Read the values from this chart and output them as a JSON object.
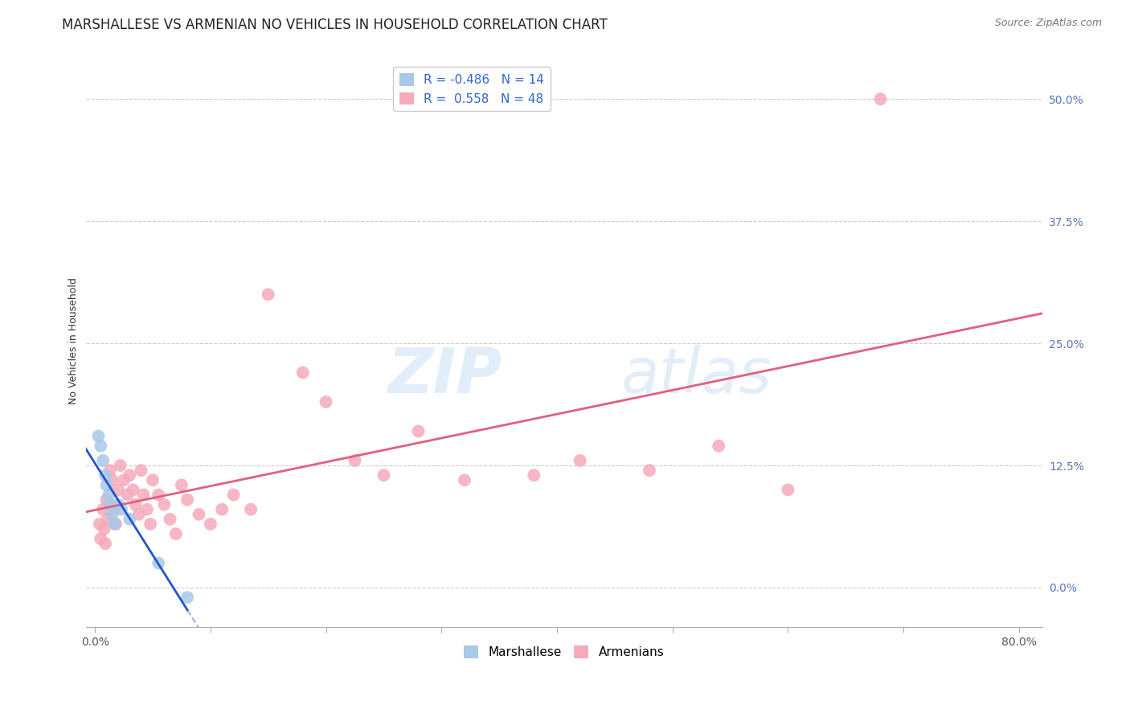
{
  "title": "MARSHALLESE VS ARMENIAN NO VEHICLES IN HOUSEHOLD CORRELATION CHART",
  "source": "Source: ZipAtlas.com",
  "ylabel": "No Vehicles in Household",
  "ytick_values": [
    0.0,
    0.125,
    0.25,
    0.375,
    0.5
  ],
  "xtick_values": [
    0.0,
    0.1,
    0.2,
    0.3,
    0.4,
    0.5,
    0.6,
    0.7,
    0.8
  ],
  "xlim": [
    -0.008,
    0.82
  ],
  "ylim": [
    -0.04,
    0.545
  ],
  "legend_r_marshallese": "-0.486",
  "legend_n_marshallese": "14",
  "legend_r_armenian": "0.558",
  "legend_n_armenian": "48",
  "marshallese_color": "#a8c8e8",
  "armenian_color": "#f5aaba",
  "marshallese_line_color": "#2255cc",
  "armenian_line_color": "#e06080",
  "marshallese_x": [
    0.003,
    0.005,
    0.007,
    0.009,
    0.01,
    0.012,
    0.013,
    0.015,
    0.017,
    0.02,
    0.023,
    0.03,
    0.055,
    0.08
  ],
  "marshallese_y": [
    0.155,
    0.145,
    0.13,
    0.115,
    0.105,
    0.095,
    0.085,
    0.075,
    0.065,
    0.085,
    0.08,
    0.07,
    0.025,
    -0.01
  ],
  "armenian_x": [
    0.004,
    0.005,
    0.007,
    0.008,
    0.009,
    0.01,
    0.011,
    0.013,
    0.015,
    0.016,
    0.018,
    0.02,
    0.022,
    0.025,
    0.028,
    0.03,
    0.033,
    0.035,
    0.038,
    0.04,
    0.042,
    0.045,
    0.048,
    0.05,
    0.055,
    0.06,
    0.065,
    0.07,
    0.075,
    0.08,
    0.09,
    0.1,
    0.11,
    0.12,
    0.135,
    0.15,
    0.18,
    0.2,
    0.225,
    0.25,
    0.28,
    0.32,
    0.38,
    0.42,
    0.48,
    0.54,
    0.6,
    0.68
  ],
  "armenian_y": [
    0.065,
    0.05,
    0.08,
    0.06,
    0.045,
    0.09,
    0.07,
    0.12,
    0.11,
    0.08,
    0.065,
    0.1,
    0.125,
    0.11,
    0.095,
    0.115,
    0.1,
    0.085,
    0.075,
    0.12,
    0.095,
    0.08,
    0.065,
    0.11,
    0.095,
    0.085,
    0.07,
    0.055,
    0.105,
    0.09,
    0.075,
    0.065,
    0.08,
    0.095,
    0.08,
    0.3,
    0.22,
    0.19,
    0.13,
    0.115,
    0.16,
    0.11,
    0.115,
    0.13,
    0.12,
    0.145,
    0.1,
    0.5
  ],
  "background_color": "#ffffff",
  "grid_color": "#cccccc",
  "watermark_zip": "ZIP",
  "watermark_atlas": "atlas",
  "title_fontsize": 12,
  "source_fontsize": 9,
  "axis_label_fontsize": 9,
  "tick_fontsize": 10,
  "legend_fontsize": 11,
  "marker_size": 130
}
